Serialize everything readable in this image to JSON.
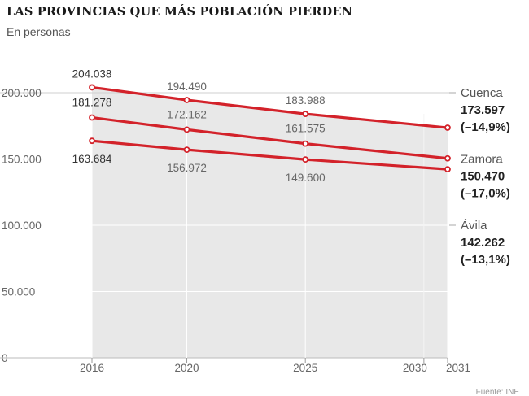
{
  "title": "LAS PROVINCIAS QUE MÁS POBLACIÓN PIERDEN",
  "subtitle": "En personas",
  "colors": {
    "line": "#d3222a",
    "plot_bg": "#e8e8e8",
    "grid": "#ffffff"
  },
  "chart_data": {
    "type": "line",
    "title": "LAS PROVINCIAS QUE MÁS POBLACIÓN PIERDEN",
    "subtitle": "En personas",
    "x_ticks": [
      2016,
      2020,
      2025,
      2030,
      2031
    ],
    "y_ticks": [
      0,
      50000,
      100000,
      150000,
      200000
    ],
    "y_tick_labels": [
      "0",
      "50.000",
      "100.000",
      "150.000",
      "200.000"
    ],
    "xlim": [
      2016,
      2031
    ],
    "ylim": [
      0,
      200000
    ],
    "grid": true,
    "legend": "right",
    "series": [
      {
        "name": "Cuenca",
        "x": [
          2016,
          2020,
          2025,
          2031
        ],
        "values": [
          204038,
          194490,
          183988,
          173597
        ],
        "labels": [
          "204.038",
          "194.490",
          "183.988"
        ],
        "end_value": "173.597",
        "change": "(–14,9%)"
      },
      {
        "name": "Zamora",
        "x": [
          2016,
          2020,
          2025,
          2031
        ],
        "values": [
          181278,
          172162,
          161575,
          150470
        ],
        "labels": [
          "181.278",
          "172.162",
          "161.575"
        ],
        "end_value": "150.470",
        "change": "(–17,0%)"
      },
      {
        "name": "Ávila",
        "x": [
          2016,
          2020,
          2025,
          2031
        ],
        "values": [
          163684,
          156972,
          149600,
          142262
        ],
        "labels": [
          "163.684",
          "156.972",
          "149.600"
        ],
        "end_value": "142.262",
        "change": "(–13,1%)"
      }
    ],
    "source": "Fuente: INE"
  }
}
